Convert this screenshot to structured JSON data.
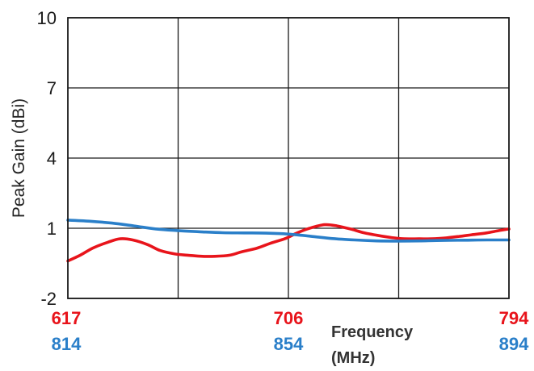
{
  "chart_data": {
    "type": "line",
    "title": "",
    "ylabel": "Peak Gain (dBi)",
    "xlabel_line1": "Frequency",
    "xlabel_line2": "(MHz)",
    "ylim": [
      -2,
      10
    ],
    "yticks": [
      "10",
      "7",
      "4",
      "1",
      "-2"
    ],
    "grid": true,
    "x_axis_rows": [
      {
        "color": "#e8141b",
        "labels": [
          "617",
          "706",
          "794"
        ],
        "range": [
          617,
          794
        ]
      },
      {
        "color": "#2a7fc9",
        "labels": [
          "814",
          "854",
          "894"
        ],
        "range": [
          814,
          894
        ]
      }
    ],
    "series": [
      {
        "color": "#e8141b",
        "x": [
          617,
          622,
          627,
          633,
          638,
          643,
          649,
          654,
          660,
          665,
          671,
          676,
          682,
          687,
          693,
          698,
          704,
          709,
          714,
          720,
          725,
          731,
          736,
          741,
          747,
          752,
          758,
          763,
          768,
          774,
          779,
          785,
          790,
          794
        ],
        "values": [
          -0.4,
          -0.15,
          0.15,
          0.4,
          0.55,
          0.5,
          0.3,
          0.05,
          -0.1,
          -0.15,
          -0.2,
          -0.2,
          -0.15,
          0.0,
          0.15,
          0.35,
          0.55,
          0.8,
          1.0,
          1.15,
          1.1,
          0.95,
          0.8,
          0.7,
          0.6,
          0.55,
          0.55,
          0.55,
          0.58,
          0.65,
          0.72,
          0.8,
          0.9,
          0.97
        ]
      },
      {
        "color": "#2a7fc9",
        "x": [
          814,
          818,
          822,
          826,
          830,
          834,
          838,
          842,
          846,
          850,
          854,
          858,
          862,
          866,
          870,
          874,
          878,
          882,
          886,
          890,
          894
        ],
        "values": [
          1.35,
          1.3,
          1.22,
          1.1,
          0.97,
          0.9,
          0.85,
          0.81,
          0.8,
          0.79,
          0.75,
          0.66,
          0.56,
          0.5,
          0.46,
          0.45,
          0.46,
          0.48,
          0.49,
          0.5,
          0.5
        ]
      }
    ]
  }
}
